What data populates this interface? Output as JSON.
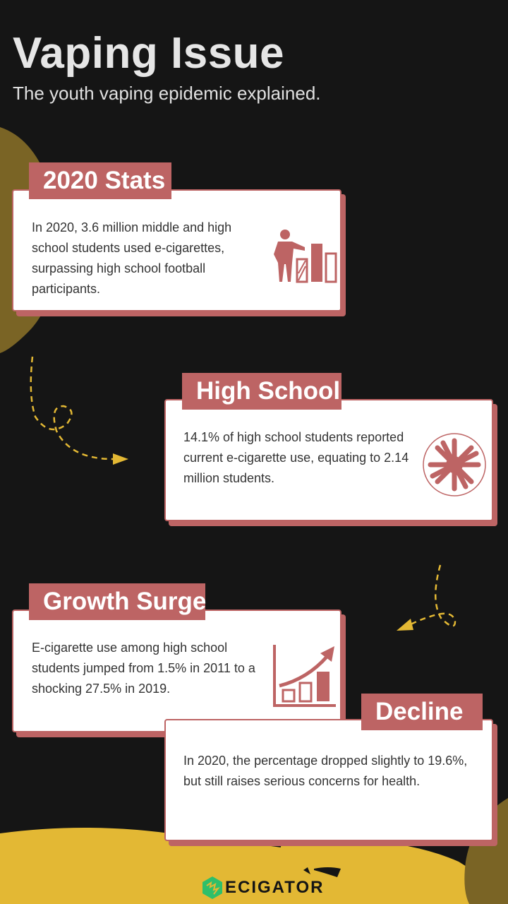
{
  "header": {
    "title": "Vaping Issue",
    "subtitle": "The youth vaping epidemic explained."
  },
  "cards": [
    {
      "label": "2020 Stats",
      "text": "In 2020, 3.6 million middle and high school students used e-cigarettes, surpassing high school football participants.",
      "icon": "presenter-bar-chart-icon"
    },
    {
      "label": "High School",
      "text": "14.1% of high school students reported current e-cigarette use, equating to 2.14 million students.",
      "icon": "crowd-circle-icon"
    },
    {
      "label": "Growth Surge",
      "text": "E-cigarette use among high school students jumped from 1.5% in 2011 to a shocking 27.5% in 2019.",
      "icon": "growth-chart-arrow-icon"
    },
    {
      "label": "Decline",
      "text": "In 2020, the percentage dropped slightly to 19.6%, but still raises serious concerns for health."
    }
  ],
  "footer": {
    "logo_text": "ECIGATOR"
  },
  "colors": {
    "background": "#151515",
    "accent": "#bd6464",
    "olive": "#7a6425",
    "yellow": "#e3b834",
    "logo_green": "#2fbf6a"
  }
}
